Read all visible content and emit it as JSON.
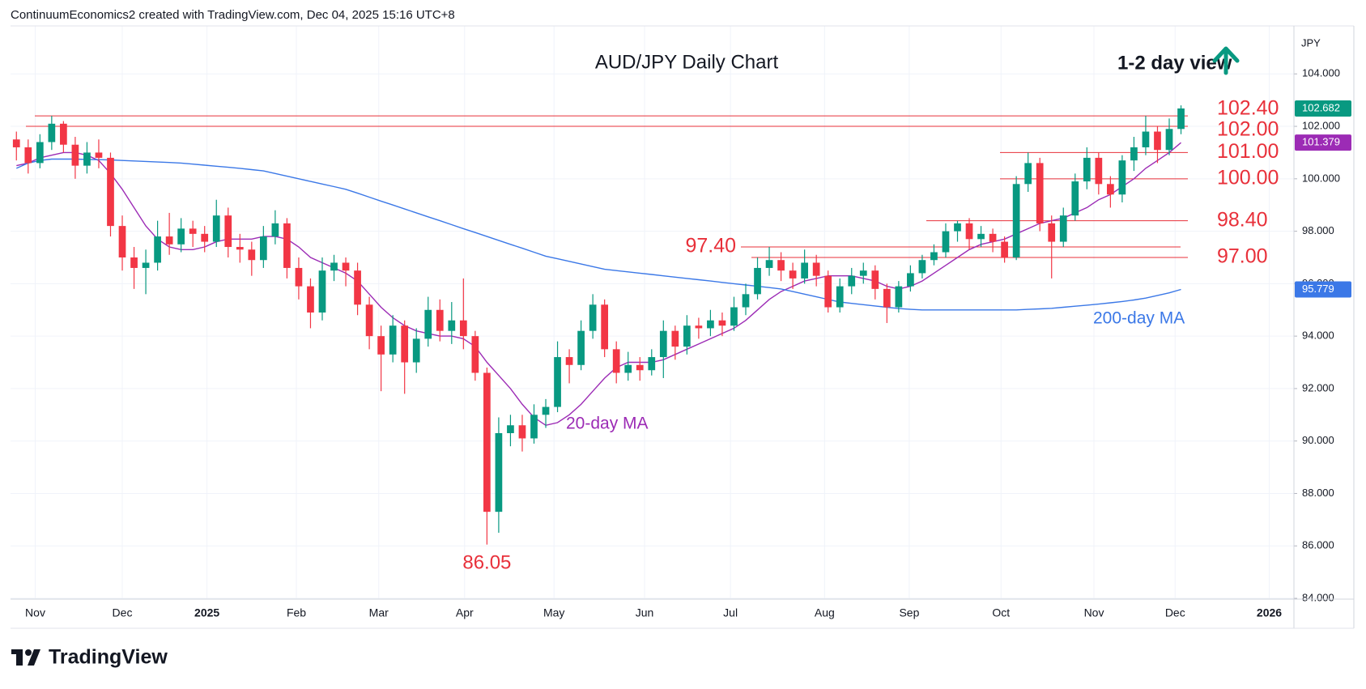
{
  "chart_data": {
    "type": "candlestick",
    "header": "ContinuumEconomics2 created with TradingView.com, Dec 04, 2025 15:16 UTC+8",
    "title": "AUD/JPY Daily Chart",
    "subtitle": "1-2 day view",
    "currency": "JPY",
    "brand": "TradingView",
    "grid": true,
    "up_color": "#089981",
    "down_color": "#f23645",
    "level_color": "#e8303a",
    "xlim": [
      -0.5,
      108.6
    ],
    "xticks": [
      {
        "value": 1.6,
        "label": "Nov"
      },
      {
        "value": 9.0,
        "label": "Dec"
      },
      {
        "value": 16.2,
        "label": "2025"
      },
      {
        "value": 23.8,
        "label": "Feb"
      },
      {
        "value": 30.8,
        "label": "Mar"
      },
      {
        "value": 38.1,
        "label": "Apr"
      },
      {
        "value": 45.7,
        "label": "May"
      },
      {
        "value": 53.4,
        "label": "Jun"
      },
      {
        "value": 60.7,
        "label": "Jul"
      },
      {
        "value": 68.7,
        "label": "Aug"
      },
      {
        "value": 75.9,
        "label": "Sep"
      },
      {
        "value": 83.7,
        "label": "Oct"
      },
      {
        "value": 91.6,
        "label": "Nov"
      },
      {
        "value": 98.5,
        "label": "Dec"
      },
      {
        "value": 106.5,
        "label": "2026"
      }
    ],
    "ylim": [
      83.97,
      105.83
    ],
    "yticks": [
      {
        "value": 84,
        "label": "84.000"
      },
      {
        "value": 86,
        "label": "86.000"
      },
      {
        "value": 88,
        "label": "88.000"
      },
      {
        "value": 90,
        "label": "90.000"
      },
      {
        "value": 92,
        "label": "92.000"
      },
      {
        "value": 94,
        "label": "94.000"
      },
      {
        "value": 96,
        "label": "96.000"
      },
      {
        "value": 98,
        "label": "98.000"
      },
      {
        "value": 100,
        "label": "100.000"
      },
      {
        "value": 102,
        "label": "102.000"
      },
      {
        "value": 104,
        "label": "104.000"
      }
    ],
    "open": [
      101.5,
      101.2,
      100.6,
      101.4,
      102.1,
      101.3,
      100.5,
      101.0,
      100.8,
      98.2,
      97.0,
      96.6,
      96.8,
      97.8,
      97.5,
      98.1,
      97.9,
      97.6,
      98.6,
      97.4,
      97.3,
      96.9,
      97.8,
      98.3,
      96.6,
      95.9,
      94.9,
      96.5,
      96.8,
      96.5,
      95.2,
      94.0,
      93.3,
      94.4,
      93.0,
      93.9,
      95.0,
      94.2,
      94.6,
      94.0,
      92.6,
      87.3,
      90.3,
      90.6,
      90.1,
      91.0,
      91.3,
      93.2,
      92.9,
      94.2,
      95.2,
      93.5,
      92.6,
      92.9,
      92.7,
      93.2,
      94.2,
      93.6,
      94.4,
      94.3,
      94.6,
      94.4,
      95.1,
      95.6,
      96.6,
      96.9,
      96.5,
      96.2,
      96.8,
      96.3,
      95.1,
      95.9,
      96.3,
      96.5,
      95.8,
      95.1,
      95.9,
      96.4,
      96.9,
      97.2,
      98.0,
      98.3,
      97.7,
      97.9,
      97.6,
      97.0,
      99.8,
      100.6,
      98.3,
      97.6,
      98.6,
      99.9,
      100.8,
      99.8,
      99.4,
      100.7,
      101.2,
      101.8,
      101.1,
      101.9
    ],
    "high": [
      101.8,
      101.5,
      101.7,
      102.4,
      102.2,
      101.6,
      101.4,
      101.5,
      101.0,
      98.6,
      97.4,
      97.3,
      98.4,
      98.7,
      98.5,
      98.4,
      98.2,
      99.2,
      98.9,
      97.9,
      97.6,
      98.2,
      98.8,
      98.5,
      97.0,
      96.2,
      97.0,
      97.1,
      97.0,
      96.8,
      95.5,
      94.4,
      94.8,
      94.6,
      94.3,
      95.5,
      95.4,
      95.3,
      96.2,
      94.2,
      92.8,
      90.9,
      91.0,
      91.0,
      91.4,
      91.6,
      93.8,
      93.5,
      94.6,
      95.6,
      95.4,
      93.8,
      93.4,
      93.2,
      93.5,
      94.6,
      94.4,
      94.8,
      94.7,
      95.0,
      94.9,
      95.5,
      96.0,
      97.0,
      97.4,
      97.2,
      96.8,
      97.3,
      97.1,
      96.5,
      96.2,
      96.6,
      96.8,
      96.7,
      96.0,
      96.1,
      96.7,
      97.1,
      97.5,
      98.3,
      98.4,
      98.5,
      98.2,
      98.1,
      97.8,
      100.1,
      101.0,
      100.8,
      98.6,
      98.9,
      100.2,
      101.2,
      101.0,
      100.1,
      100.9,
      101.6,
      102.4,
      102.0,
      102.3,
      102.8
    ],
    "low": [
      100.7,
      100.2,
      100.4,
      101.1,
      101.0,
      100.0,
      100.2,
      100.4,
      97.8,
      96.5,
      95.8,
      95.6,
      96.5,
      97.1,
      97.2,
      97.4,
      97.2,
      97.4,
      97.0,
      96.8,
      96.3,
      96.6,
      97.5,
      96.2,
      95.4,
      94.3,
      94.6,
      96.1,
      95.9,
      94.8,
      93.5,
      91.9,
      93.0,
      91.8,
      92.6,
      93.6,
      93.8,
      93.7,
      93.5,
      92.3,
      86.05,
      86.5,
      89.8,
      89.6,
      89.9,
      90.5,
      91.1,
      92.2,
      92.7,
      93.9,
      93.2,
      92.2,
      92.3,
      92.3,
      92.5,
      92.4,
      93.1,
      93.3,
      93.9,
      94.0,
      94.0,
      94.2,
      94.8,
      95.4,
      96.3,
      96.1,
      95.8,
      96.0,
      95.9,
      94.9,
      94.9,
      95.6,
      96.0,
      95.4,
      94.5,
      94.9,
      95.7,
      96.2,
      96.7,
      97.0,
      97.6,
      97.3,
      97.4,
      97.2,
      96.8,
      96.9,
      99.5,
      98.0,
      96.2,
      97.4,
      98.4,
      99.6,
      99.4,
      98.9,
      99.1,
      100.3,
      100.9,
      100.6,
      100.9,
      101.7
    ],
    "close": [
      101.2,
      100.6,
      101.4,
      102.1,
      101.3,
      100.5,
      101.0,
      100.8,
      98.2,
      97.0,
      96.6,
      96.8,
      97.8,
      97.5,
      98.1,
      97.9,
      97.6,
      98.6,
      97.4,
      97.3,
      96.9,
      97.8,
      98.3,
      96.6,
      95.9,
      94.9,
      96.5,
      96.8,
      96.5,
      95.2,
      94.0,
      93.3,
      94.4,
      93.0,
      93.9,
      95.0,
      94.2,
      94.6,
      94.0,
      92.6,
      87.3,
      90.3,
      90.6,
      90.1,
      91.0,
      91.3,
      93.2,
      92.9,
      94.2,
      95.2,
      93.5,
      92.6,
      92.9,
      92.7,
      93.2,
      94.2,
      93.6,
      94.4,
      94.3,
      94.6,
      94.4,
      95.1,
      95.6,
      96.6,
      96.9,
      96.5,
      96.2,
      96.8,
      96.3,
      95.1,
      95.9,
      96.3,
      96.5,
      95.8,
      95.1,
      95.9,
      96.4,
      96.9,
      97.2,
      98.0,
      98.3,
      97.7,
      97.9,
      97.6,
      97.0,
      99.8,
      100.6,
      98.3,
      97.6,
      98.6,
      99.9,
      100.8,
      99.8,
      99.4,
      100.7,
      101.2,
      101.8,
      101.1,
      101.9,
      102.682
    ],
    "series": [
      {
        "name": "20-day MA",
        "color": "#9c2bb5",
        "values": [
          100.5,
          100.6,
          100.8,
          100.9,
          101.0,
          101.0,
          100.9,
          100.7,
          100.2,
          99.6,
          98.9,
          98.2,
          97.7,
          97.4,
          97.3,
          97.3,
          97.4,
          97.6,
          97.7,
          97.7,
          97.7,
          97.8,
          97.8,
          97.7,
          97.4,
          97.0,
          96.8,
          96.6,
          96.4,
          96.1,
          95.6,
          95.1,
          94.7,
          94.4,
          94.2,
          94.1,
          94.0,
          94.0,
          93.9,
          93.6,
          93.0,
          92.5,
          92.0,
          91.4,
          90.9,
          90.6,
          90.7,
          91.0,
          91.4,
          91.9,
          92.4,
          92.8,
          93.0,
          93.0,
          93.0,
          93.1,
          93.3,
          93.5,
          93.7,
          93.9,
          94.1,
          94.3,
          94.6,
          95.0,
          95.4,
          95.7,
          95.9,
          96.1,
          96.2,
          96.3,
          96.3,
          96.3,
          96.2,
          96.1,
          95.9,
          95.8,
          95.9,
          96.1,
          96.4,
          96.7,
          97.0,
          97.3,
          97.5,
          97.6,
          97.7,
          97.9,
          98.1,
          98.3,
          98.4,
          98.5,
          98.7,
          98.9,
          99.2,
          99.4,
          99.7,
          100.0,
          100.4,
          100.7,
          101.0,
          101.379
        ]
      },
      {
        "name": "200-day MA",
        "color": "#3b78e7",
        "values": [
          100.4,
          100.6,
          100.7,
          100.75,
          100.75,
          100.75,
          100.74,
          100.73,
          100.72,
          100.7,
          100.68,
          100.66,
          100.64,
          100.62,
          100.6,
          100.56,
          100.52,
          100.48,
          100.44,
          100.4,
          100.35,
          100.3,
          100.2,
          100.1,
          100.0,
          99.9,
          99.8,
          99.7,
          99.6,
          99.45,
          99.3,
          99.15,
          99.0,
          98.85,
          98.7,
          98.55,
          98.4,
          98.25,
          98.1,
          97.95,
          97.8,
          97.65,
          97.5,
          97.35,
          97.2,
          97.05,
          96.95,
          96.85,
          96.75,
          96.65,
          96.55,
          96.5,
          96.45,
          96.4,
          96.35,
          96.3,
          96.25,
          96.2,
          96.15,
          96.1,
          96.05,
          96.0,
          95.95,
          95.9,
          95.85,
          95.8,
          95.7,
          95.6,
          95.5,
          95.4,
          95.3,
          95.25,
          95.2,
          95.15,
          95.1,
          95.05,
          95.02,
          95.0,
          95.0,
          95.0,
          95.0,
          95.0,
          95.0,
          95.0,
          95.0,
          95.0,
          95.02,
          95.04,
          95.06,
          95.1,
          95.14,
          95.18,
          95.22,
          95.27,
          95.32,
          95.38,
          95.45,
          95.55,
          95.65,
          95.779
        ]
      }
    ],
    "levels": [
      {
        "value": 102.4,
        "label": "102.40"
      },
      {
        "value": 102.0,
        "label": "102.00"
      },
      {
        "value": 101.0,
        "label": "101.00"
      },
      {
        "value": 100.0,
        "label": "100.00"
      },
      {
        "value": 98.4,
        "label": "98.40"
      },
      {
        "value": 97.4,
        "label": "97.40"
      },
      {
        "value": 97.0,
        "label": "97.00"
      }
    ],
    "annotations": [
      {
        "text": "86.05"
      }
    ]
  }
}
